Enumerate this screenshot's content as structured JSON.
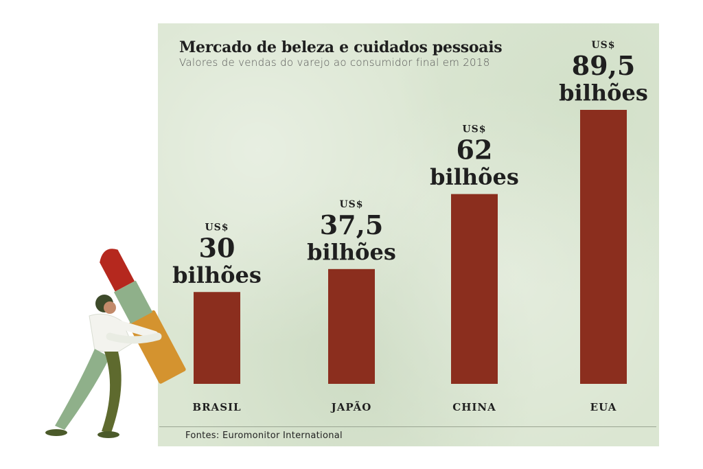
{
  "chart_data": {
    "type": "bar",
    "title": "Mercado de beleza e cuidados pessoais",
    "subtitle": "Valores de vendas do varejo ao consumidor final em 2018",
    "categories": [
      "BRASIL",
      "JAPÃO",
      "CHINA",
      "EUA"
    ],
    "values": [
      30,
      37.5,
      62,
      89.5
    ],
    "value_labels": [
      {
        "currency": "US$",
        "number": "30",
        "unit": "bilhões"
      },
      {
        "currency": "US$",
        "number": "37,5",
        "unit": "bilhões"
      },
      {
        "currency": "US$",
        "number": "62",
        "unit": "bilhões"
      },
      {
        "currency": "US$",
        "number": "89,5",
        "unit": "bilhões"
      }
    ],
    "xlabel": "",
    "ylabel": "",
    "ylim": [
      0,
      89.5
    ],
    "grid": false,
    "legend": "none",
    "bar_color": "#8b2e1e",
    "source": "Fontes: Euromonitor International"
  },
  "colors": {
    "panel_background": "#dbe6d2",
    "bar": "#8b2e1e",
    "text": "#1f1f1f"
  },
  "illustration": {
    "description_icon": "person-pushing-lipstick-icon"
  }
}
